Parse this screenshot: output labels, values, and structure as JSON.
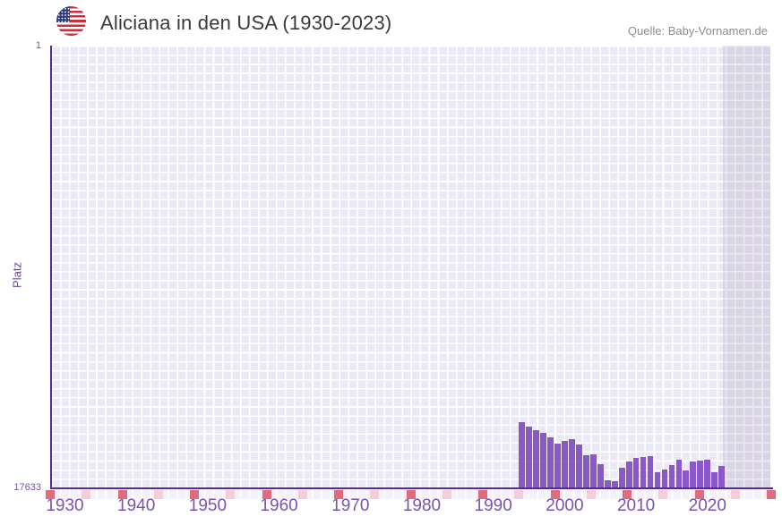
{
  "header": {
    "title": "Aliciana in den USA (1930-2023)",
    "flag_icon": "us-flag-icon",
    "source": "Quelle: Baby-Vornamen.de"
  },
  "chart_data": {
    "type": "bar",
    "title": "Aliciana in den USA (1930-2023)",
    "ylabel": "Platz",
    "y_axis": {
      "top_label": "1",
      "bottom_label": "17633",
      "min": 1,
      "max": 17633,
      "inverted": true,
      "note": "rank 1 at top; bars grow upward from bottom (rank 17633)"
    },
    "x_axis": {
      "tick_labels": [
        "1930",
        "1940",
        "1950",
        "1960",
        "1970",
        "1980",
        "1990",
        "2000",
        "2010",
        "2020"
      ],
      "range_start": 1930,
      "range_end": 2023
    },
    "series": [
      {
        "name": "Platz",
        "points": [
          {
            "year": 1994,
            "rank": 15050
          },
          {
            "year": 1995,
            "rank": 15230
          },
          {
            "year": 1996,
            "rank": 15370
          },
          {
            "year": 1997,
            "rank": 15480
          },
          {
            "year": 1998,
            "rank": 15650
          },
          {
            "year": 1999,
            "rank": 15900
          },
          {
            "year": 2000,
            "rank": 15800
          },
          {
            "year": 2001,
            "rank": 15720
          },
          {
            "year": 2002,
            "rank": 15940
          },
          {
            "year": 2003,
            "rank": 16370
          },
          {
            "year": 2004,
            "rank": 16330
          },
          {
            "year": 2005,
            "rank": 16720
          },
          {
            "year": 2006,
            "rank": 17370
          },
          {
            "year": 2007,
            "rank": 17400
          },
          {
            "year": 2008,
            "rank": 16870
          },
          {
            "year": 2009,
            "rank": 16620
          },
          {
            "year": 2010,
            "rank": 16470
          },
          {
            "year": 2011,
            "rank": 16440
          },
          {
            "year": 2012,
            "rank": 16400
          },
          {
            "year": 2013,
            "rank": 17040
          },
          {
            "year": 2014,
            "rank": 16940
          },
          {
            "year": 2015,
            "rank": 16760
          },
          {
            "year": 2016,
            "rank": 16550
          },
          {
            "year": 2017,
            "rank": 16970
          },
          {
            "year": 2018,
            "rank": 16620
          },
          {
            "year": 2019,
            "rank": 16580
          },
          {
            "year": 2020,
            "rank": 16550
          },
          {
            "year": 2021,
            "rank": 17040
          },
          {
            "year": 2022,
            "rank": 16800
          }
        ]
      }
    ],
    "no_data_years": "1930-1993 and 2023 (no bars shown)",
    "legend": false,
    "grid": true,
    "colors": {
      "bar": "#8b58c7",
      "axis_line": "#522d92",
      "tick_label": "#7b52ae",
      "axis_title": "#6b42a1",
      "grid_cell": "#ece9f6",
      "future_band_overlay": "rgba(90,85,125,0.13)",
      "decade_marker": "#e26b7b",
      "half_decade_marker": "#f5cdd8",
      "title": "#3a3a3a",
      "source": "#8d8d8d"
    }
  }
}
